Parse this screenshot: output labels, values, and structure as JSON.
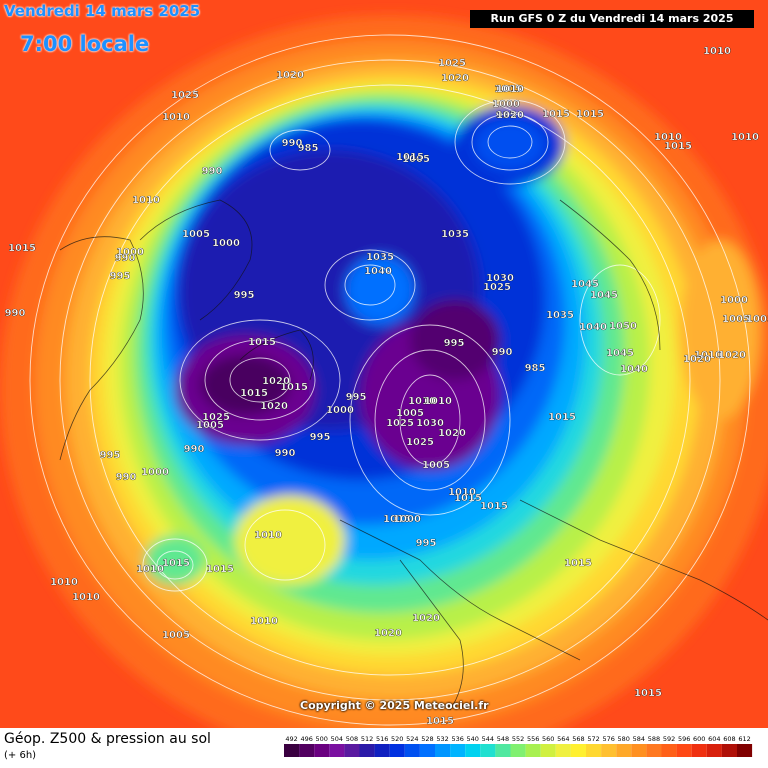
{
  "header": {
    "date": "Vendredi 14 mars 2025",
    "time": "7:00 locale",
    "run": "Run GFS 0 Z du Vendredi 14 mars 2025"
  },
  "copyright": "Copyright © 2025 Meteociel.fr",
  "legend": {
    "title": "Géop. Z500 & pression au sol",
    "subtitle": "(+ 6h)",
    "scale_values": [
      "492",
      "496",
      "500",
      "504",
      "508",
      "512",
      "516",
      "520",
      "524",
      "528",
      "532",
      "536",
      "540",
      "544",
      "548",
      "552",
      "556",
      "560",
      "564",
      "568",
      "572",
      "576",
      "580",
      "584",
      "588",
      "592",
      "596",
      "600",
      "604",
      "608",
      "612"
    ],
    "scale_colors": [
      "#3a0040",
      "#520060",
      "#6a0080",
      "#7a10a0",
      "#5a1aa0",
      "#2a1aa8",
      "#1020c0",
      "#0030e0",
      "#0050f0",
      "#0070ff",
      "#0096ff",
      "#00b4ff",
      "#00d2f0",
      "#20e0d0",
      "#50e8a0",
      "#80f070",
      "#a8f050",
      "#d0f040",
      "#f0f040",
      "#fff030",
      "#ffd830",
      "#ffc030",
      "#ffa828",
      "#ff9020",
      "#ff7820",
      "#ff6018",
      "#ff4814",
      "#f03010",
      "#d8200c",
      "#b01008",
      "#800000"
    ]
  },
  "pressure_labels": [
    "1025",
    "1020",
    "1020",
    "1025",
    "1010",
    "1005",
    "1000",
    "995",
    "990",
    "985",
    "990",
    "1010",
    "1015",
    "1020",
    "1015",
    "1010",
    "1015",
    "1005",
    "1010",
    "1015",
    "1035",
    "1040",
    "1035",
    "1025",
    "1030",
    "1045",
    "1045",
    "1035",
    "1040",
    "1050",
    "1045",
    "1040",
    "1015",
    "1015",
    "1010",
    "1010",
    "1000",
    "1005",
    "1005",
    "1010",
    "1020",
    "1020",
    "990",
    "995",
    "990",
    "1000",
    "1005",
    "1000",
    "995",
    "1015",
    "1020",
    "1015",
    "1015",
    "1020",
    "1025",
    "1005",
    "995",
    "1000",
    "995",
    "990",
    "990",
    "995",
    "990",
    "1000",
    "995",
    "990",
    "985",
    "1010",
    "1010",
    "1005",
    "1025",
    "1030",
    "1025",
    "1020",
    "1005",
    "1010",
    "1015",
    "1015",
    "1015",
    "1000",
    "995",
    "1010",
    "1015",
    "1010",
    "1015",
    "1010",
    "1010",
    "1005",
    "1010",
    "1020",
    "1020",
    "1015",
    "1015",
    "1015"
  ],
  "colors": {
    "background": "#ff4a1a"
  }
}
